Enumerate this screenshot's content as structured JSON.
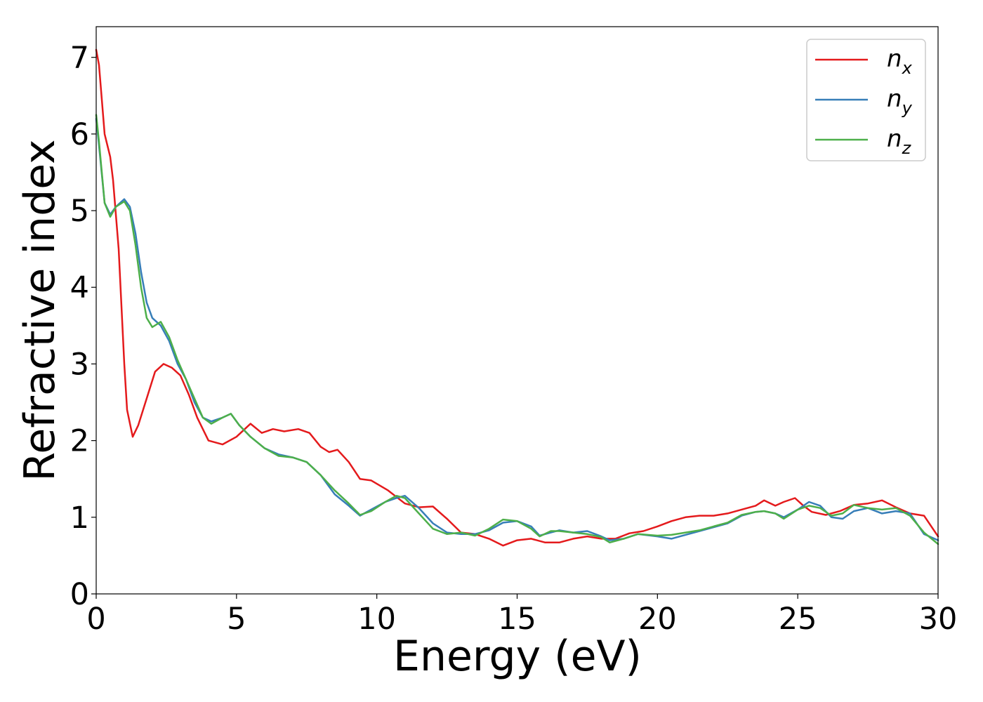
{
  "chart_data": {
    "type": "line",
    "xlabel": "Energy (eV)",
    "ylabel": "Refractive index",
    "xlim": [
      0,
      30
    ],
    "ylim": [
      0,
      7.4
    ],
    "xticks": [
      0,
      5,
      10,
      15,
      20,
      25,
      30
    ],
    "yticks": [
      0,
      1,
      2,
      3,
      4,
      5,
      6,
      7
    ],
    "grid": false,
    "legend_position": "top-right",
    "series": [
      {
        "name": "n_x",
        "label_main": "n",
        "label_sub": "x",
        "color": "#e41a1c",
        "x": [
          0,
          0.1,
          0.3,
          0.5,
          0.6,
          0.8,
          1.0,
          1.1,
          1.3,
          1.5,
          1.8,
          2.1,
          2.4,
          2.7,
          3.0,
          3.3,
          3.6,
          4.0,
          4.5,
          5.0,
          5.5,
          5.9,
          6.3,
          6.7,
          7.2,
          7.6,
          8.0,
          8.3,
          8.6,
          9.0,
          9.4,
          9.8,
          10.4,
          11.0,
          11.5,
          12.0,
          12.5,
          13.0,
          13.5,
          14.0,
          14.5,
          15.0,
          15.5,
          16.0,
          16.5,
          17.0,
          17.5,
          18.0,
          18.5,
          19.0,
          19.5,
          20.0,
          20.5,
          21.0,
          21.5,
          22.0,
          22.5,
          23.0,
          23.5,
          23.8,
          24.2,
          24.5,
          24.9,
          25.2,
          25.5,
          26.0,
          26.5,
          27.0,
          27.5,
          28.0,
          28.5,
          29.0,
          29.5,
          30.0
        ],
        "y": [
          7.1,
          6.9,
          6.0,
          5.7,
          5.4,
          4.5,
          3.0,
          2.4,
          2.05,
          2.2,
          2.55,
          2.9,
          3.0,
          2.95,
          2.85,
          2.6,
          2.3,
          2.0,
          1.95,
          2.05,
          2.22,
          2.1,
          2.15,
          2.12,
          2.15,
          2.1,
          1.92,
          1.85,
          1.88,
          1.72,
          1.5,
          1.48,
          1.35,
          1.18,
          1.13,
          1.14,
          0.98,
          0.8,
          0.78,
          0.72,
          0.63,
          0.7,
          0.72,
          0.67,
          0.67,
          0.72,
          0.75,
          0.72,
          0.72,
          0.79,
          0.82,
          0.88,
          0.95,
          1.0,
          1.02,
          1.02,
          1.05,
          1.1,
          1.15,
          1.22,
          1.15,
          1.2,
          1.25,
          1.15,
          1.07,
          1.03,
          1.08,
          1.16,
          1.18,
          1.22,
          1.13,
          1.05,
          1.02,
          0.75
        ]
      },
      {
        "name": "n_y",
        "label_main": "n",
        "label_sub": "y",
        "color": "#377eb8",
        "x": [
          0,
          0.1,
          0.3,
          0.5,
          0.7,
          1.0,
          1.2,
          1.4,
          1.6,
          1.8,
          2.0,
          2.3,
          2.6,
          2.9,
          3.2,
          3.5,
          3.8,
          4.1,
          4.5,
          4.8,
          5.1,
          5.5,
          6.0,
          6.5,
          7.0,
          7.5,
          8.0,
          8.5,
          9.0,
          9.4,
          9.8,
          10.3,
          10.7,
          11.0,
          11.5,
          12.0,
          12.5,
          13.0,
          13.5,
          14.0,
          14.5,
          15.0,
          15.5,
          15.8,
          16.2,
          16.5,
          17.0,
          17.5,
          18.0,
          18.3,
          18.8,
          19.3,
          20.0,
          20.5,
          21.0,
          21.5,
          22.0,
          22.5,
          23.0,
          23.5,
          23.8,
          24.2,
          24.5,
          25.0,
          25.4,
          25.8,
          26.2,
          26.6,
          27.0,
          27.5,
          28.0,
          28.5,
          29.0,
          29.5,
          30.0
        ],
        "y": [
          6.2,
          5.85,
          5.1,
          4.95,
          5.05,
          5.15,
          5.05,
          4.7,
          4.2,
          3.8,
          3.6,
          3.5,
          3.3,
          3.0,
          2.8,
          2.5,
          2.3,
          2.25,
          2.3,
          2.35,
          2.2,
          2.05,
          1.9,
          1.82,
          1.78,
          1.72,
          1.55,
          1.3,
          1.15,
          1.02,
          1.1,
          1.2,
          1.25,
          1.28,
          1.12,
          0.92,
          0.8,
          0.78,
          0.78,
          0.83,
          0.93,
          0.95,
          0.88,
          0.76,
          0.8,
          0.83,
          0.8,
          0.82,
          0.75,
          0.7,
          0.72,
          0.78,
          0.75,
          0.72,
          0.77,
          0.82,
          0.87,
          0.92,
          1.02,
          1.07,
          1.08,
          1.05,
          1.0,
          1.1,
          1.2,
          1.15,
          1.0,
          0.98,
          1.08,
          1.12,
          1.05,
          1.08,
          1.05,
          0.78,
          0.7
        ]
      },
      {
        "name": "n_z",
        "label_main": "n",
        "label_sub": "z",
        "color": "#4daf4a",
        "x": [
          0,
          0.1,
          0.3,
          0.5,
          0.7,
          1.0,
          1.2,
          1.4,
          1.6,
          1.8,
          2.0,
          2.3,
          2.6,
          2.9,
          3.2,
          3.5,
          3.8,
          4.1,
          4.5,
          4.8,
          5.1,
          5.5,
          6.0,
          6.5,
          7.0,
          7.5,
          8.0,
          8.5,
          9.0,
          9.4,
          9.8,
          10.3,
          10.7,
          11.0,
          11.5,
          12.0,
          12.5,
          13.0,
          13.5,
          14.0,
          14.5,
          15.0,
          15.5,
          15.8,
          16.2,
          16.5,
          17.0,
          17.5,
          18.0,
          18.3,
          18.8,
          19.3,
          20.0,
          20.5,
          21.0,
          21.5,
          22.0,
          22.5,
          23.0,
          23.5,
          23.8,
          24.2,
          24.5,
          25.0,
          25.4,
          25.8,
          26.2,
          26.6,
          27.0,
          27.5,
          28.0,
          28.5,
          29.0,
          29.5,
          30.0
        ],
        "y": [
          6.25,
          5.9,
          5.1,
          4.92,
          5.05,
          5.12,
          5.0,
          4.55,
          4.0,
          3.6,
          3.48,
          3.55,
          3.35,
          3.05,
          2.8,
          2.55,
          2.3,
          2.22,
          2.3,
          2.35,
          2.2,
          2.05,
          1.9,
          1.8,
          1.78,
          1.72,
          1.55,
          1.35,
          1.18,
          1.03,
          1.08,
          1.2,
          1.28,
          1.25,
          1.05,
          0.85,
          0.78,
          0.8,
          0.76,
          0.85,
          0.97,
          0.95,
          0.85,
          0.75,
          0.82,
          0.82,
          0.8,
          0.78,
          0.74,
          0.67,
          0.72,
          0.78,
          0.76,
          0.77,
          0.8,
          0.83,
          0.88,
          0.93,
          1.03,
          1.07,
          1.08,
          1.05,
          0.98,
          1.1,
          1.15,
          1.12,
          1.02,
          1.05,
          1.16,
          1.12,
          1.1,
          1.12,
          1.02,
          0.8,
          0.65
        ]
      }
    ]
  }
}
